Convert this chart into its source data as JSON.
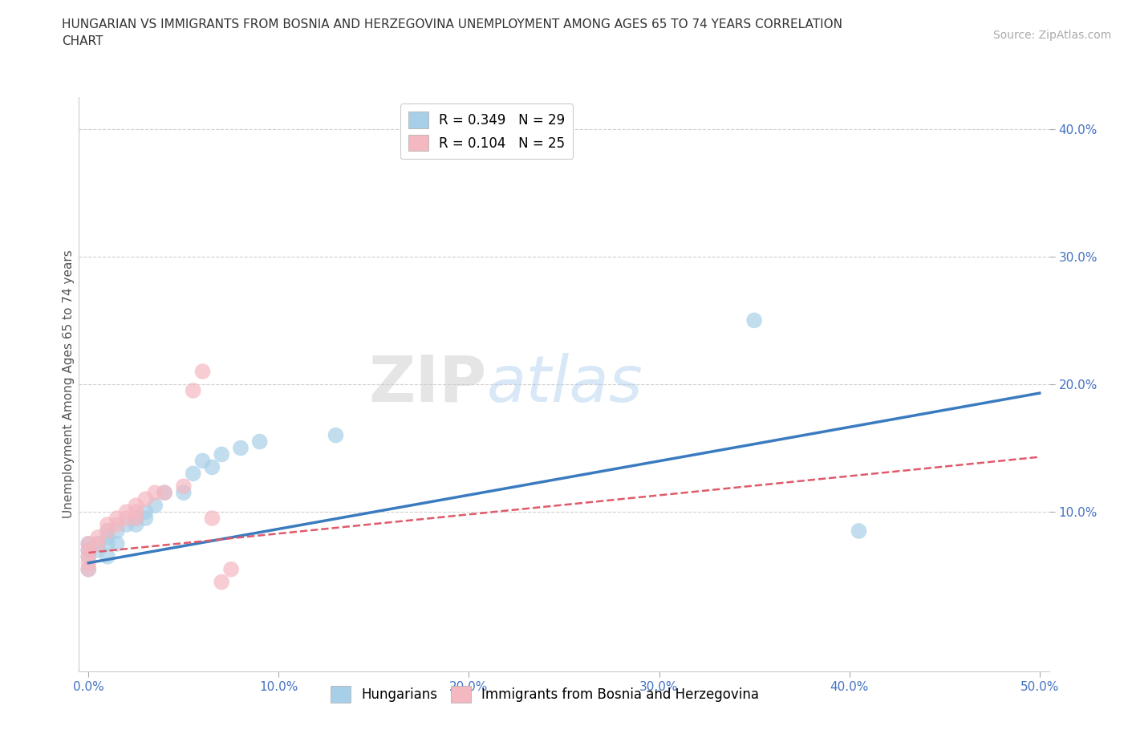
{
  "title": "HUNGARIAN VS IMMIGRANTS FROM BOSNIA AND HERZEGOVINA UNEMPLOYMENT AMONG AGES 65 TO 74 YEARS CORRELATION\nCHART",
  "source": "Source: ZipAtlas.com",
  "ylabel": "Unemployment Among Ages 65 to 74 years",
  "xlim": [
    -0.005,
    0.505
  ],
  "ylim": [
    -0.025,
    0.425
  ],
  "xticks": [
    0.0,
    0.1,
    0.2,
    0.3,
    0.4,
    0.5
  ],
  "yticks": [
    0.1,
    0.2,
    0.3,
    0.4
  ],
  "xticklabels": [
    "0.0%",
    "10.0%",
    "20.0%",
    "30.0%",
    "40.0%",
    "50.0%"
  ],
  "yticklabels": [
    "10.0%",
    "20.0%",
    "30.0%",
    "40.0%"
  ],
  "watermark_zip": "ZIP",
  "watermark_atlas": "atlas",
  "legend_r1": "R = 0.349",
  "legend_n1": "N = 29",
  "legend_r2": "R = 0.104",
  "legend_n2": "N = 25",
  "color_hungarian": "#a8cfe8",
  "color_bosnian": "#f4b8c1",
  "color_line_hungarian": "#3a7bbf",
  "color_line_bosnian": "#e05a6a",
  "hungarian_x": [
    0.0,
    0.0,
    0.0,
    0.0,
    0.005,
    0.005,
    0.01,
    0.01,
    0.01,
    0.01,
    0.015,
    0.015,
    0.02,
    0.025,
    0.025,
    0.03,
    0.03,
    0.035,
    0.04,
    0.05,
    0.055,
    0.06,
    0.065,
    0.07,
    0.08,
    0.09,
    0.13,
    0.35,
    0.405
  ],
  "hungarian_y": [
    0.055,
    0.065,
    0.07,
    0.075,
    0.07,
    0.075,
    0.065,
    0.075,
    0.08,
    0.085,
    0.075,
    0.085,
    0.09,
    0.09,
    0.095,
    0.095,
    0.1,
    0.105,
    0.115,
    0.115,
    0.13,
    0.14,
    0.135,
    0.145,
    0.15,
    0.155,
    0.16,
    0.25,
    0.085
  ],
  "bosnian_x": [
    0.0,
    0.0,
    0.0,
    0.0,
    0.0,
    0.005,
    0.005,
    0.01,
    0.01,
    0.015,
    0.015,
    0.02,
    0.02,
    0.025,
    0.025,
    0.025,
    0.03,
    0.035,
    0.04,
    0.05,
    0.055,
    0.06,
    0.065,
    0.07,
    0.075
  ],
  "bosnian_y": [
    0.055,
    0.06,
    0.065,
    0.07,
    0.075,
    0.075,
    0.08,
    0.085,
    0.09,
    0.09,
    0.095,
    0.095,
    0.1,
    0.095,
    0.1,
    0.105,
    0.11,
    0.115,
    0.115,
    0.12,
    0.195,
    0.21,
    0.095,
    0.045,
    0.055
  ],
  "hungarian_trendline_x": [
    0.0,
    0.5
  ],
  "hungarian_trendline_y": [
    0.06,
    0.193
  ],
  "bosnian_trendline_x": [
    0.0,
    0.5
  ],
  "bosnian_trendline_y": [
    0.068,
    0.143
  ],
  "grid_color": "#d0d0d0",
  "background_color": "#ffffff",
  "title_fontsize": 11,
  "axis_label_fontsize": 11,
  "tick_fontsize": 11,
  "legend_fontsize": 12,
  "source_fontsize": 10
}
